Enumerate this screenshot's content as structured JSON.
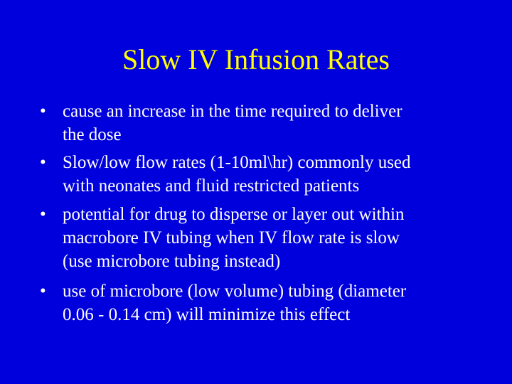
{
  "title": "Slow IV Infusion Rates",
  "bullets": [
    {
      "lines": [
        "cause an increase in the time required to deliver",
        "the dose"
      ]
    },
    {
      "lines": [
        "Slow/low flow rates (1-10ml\\hr) commonly used",
        "with neonates and fluid restricted patients"
      ]
    },
    {
      "lines": [
        "potential for drug to disperse or layer out within",
        "macrobore IV tubing when IV flow rate is slow",
        "(use microbore tubing instead)"
      ]
    },
    {
      "lines": [
        "use of microbore (low volume) tubing (diameter",
        "0.06 - 0.14 cm) will minimize this effect"
      ]
    }
  ]
}
